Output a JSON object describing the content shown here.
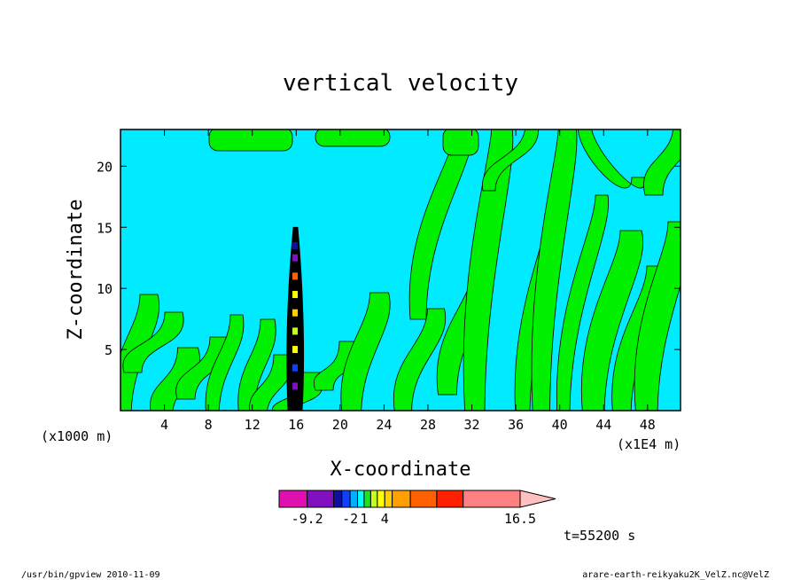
{
  "chart_data": {
    "type": "heatmap",
    "title": "vertical velocity",
    "xlabel": "X-coordinate",
    "ylabel": "Z-coordinate",
    "x_unit_left": "(x1000 m)",
    "x_unit_right": "(x1E4 m)",
    "xlim": [
      0,
      51
    ],
    "ylim": [
      0,
      23
    ],
    "x_ticks": [
      4,
      8,
      12,
      16,
      20,
      24,
      28,
      32,
      36,
      40,
      44,
      48
    ],
    "y_ticks": [
      5,
      10,
      15,
      20
    ],
    "colorbar": {
      "colors": [
        "#e010b0",
        "#8010c0",
        "#1010a0",
        "#1040ff",
        "#00b0ff",
        "#00ffff",
        "#20e020",
        "#c0ff20",
        "#ffff00",
        "#ffd000",
        "#ffa000",
        "#ff6000",
        "#ff2000",
        "#ff8080",
        "#ffc0c0"
      ],
      "tick_labels": [
        {
          "value": -9.2,
          "label": "-9.2"
        },
        {
          "value": -2,
          "label": "-2"
        },
        {
          "value": 1,
          "label": "1"
        },
        {
          "value": 4,
          "label": "4"
        },
        {
          "value": 16.5,
          "label": "16.5"
        }
      ]
    },
    "colors": {
      "background_field": "#00ebff",
      "positive_field": "#00f000",
      "contour": "#000000"
    }
  },
  "time_label": "t=55200 s",
  "footer_left": "/usr/bin/gpview  2010-11-09",
  "footer_right": "arare-earth-reikyaku2K_VelZ.nc@VelZ"
}
